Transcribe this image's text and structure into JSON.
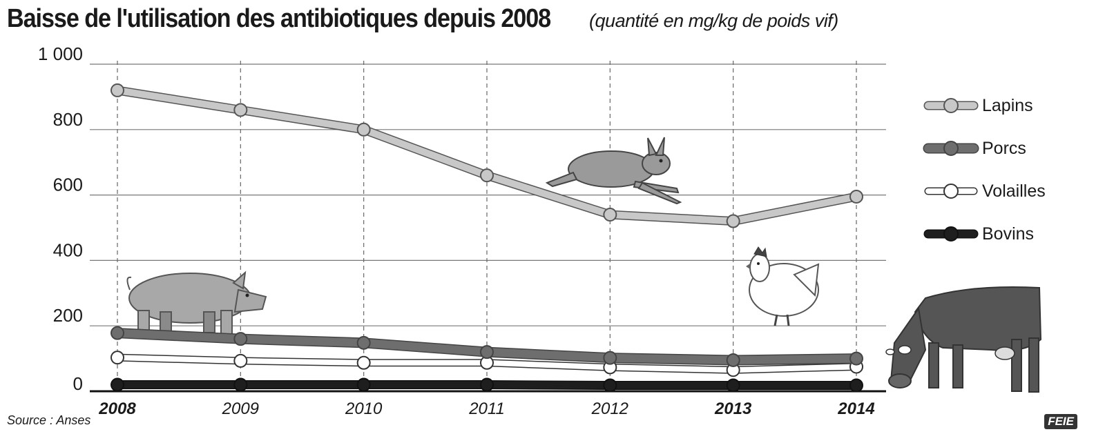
{
  "header": {
    "title": "Baisse de l'utilisation des antibiotiques depuis 2008",
    "subtitle": "(quantité en mg/kg de poids vif)"
  },
  "footer": {
    "source": "Source : Anses",
    "logo_text": "FEIE"
  },
  "chart_data": {
    "type": "line",
    "x": [
      "2008",
      "2009",
      "2010",
      "2011",
      "2012",
      "2013",
      "2014"
    ],
    "x_bold": [
      "2008",
      "2013",
      "2014"
    ],
    "y_ticks": [
      "0",
      "200",
      "400",
      "600",
      "800",
      "1 000"
    ],
    "ylim": [
      0,
      1000
    ],
    "grid": "horizontal solid, vertical dashed",
    "legend_position": "right",
    "series": [
      {
        "name": "Lapins",
        "values": [
          920,
          860,
          800,
          660,
          540,
          520,
          595
        ],
        "color": "#c8c8c8",
        "icon": "rabbit-icon"
      },
      {
        "name": "Porcs",
        "values": [
          178,
          160,
          148,
          120,
          102,
          95,
          100
        ],
        "color": "#6e6e6e",
        "icon": "pig-icon"
      },
      {
        "name": "Volailles",
        "values": [
          103,
          93,
          87,
          87,
          73,
          65,
          75
        ],
        "color": "#ffffff",
        "icon": "hen-icon"
      },
      {
        "name": "Bovins",
        "values": [
          20,
          20,
          20,
          20,
          18,
          18,
          18
        ],
        "color": "#1e1e1e",
        "icon": "cow-icon"
      }
    ]
  }
}
